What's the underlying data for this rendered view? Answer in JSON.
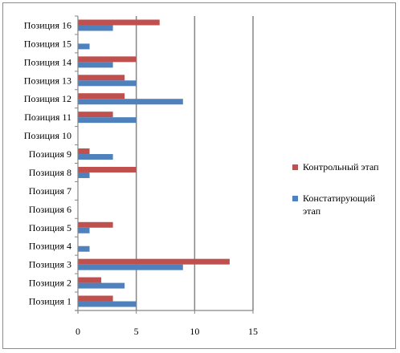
{
  "chart_data": {
    "type": "bar",
    "orientation": "horizontal",
    "categories": [
      "Позиция 1",
      "Позиция 2",
      "Позиция 3",
      "Позиция 4",
      "Позиция 5",
      "Позиция 6",
      "Позиция 7",
      "Позиция 8",
      "Позиция 9",
      "Позиция 10",
      "Позиция 11",
      "Позиция 12",
      "Позиция 13",
      "Позиция 14",
      "Позиция 15",
      "Позиция 16"
    ],
    "series": [
      {
        "name": "Констатирующий этап",
        "color": "#4f81bd",
        "values": [
          5,
          4,
          9,
          1,
          1,
          0,
          0,
          1,
          3,
          0,
          5,
          9,
          5,
          3,
          1,
          3
        ]
      },
      {
        "name": "Контрольный этап",
        "color": "#c0504d",
        "values": [
          3,
          2,
          13,
          0,
          3,
          0,
          0,
          5,
          1,
          0,
          3,
          4,
          4,
          5,
          0,
          7
        ]
      }
    ],
    "xlim": [
      0,
      15
    ],
    "xticks": [
      0,
      5,
      10,
      15
    ],
    "grid": "vertical major gridlines",
    "legend_position": "right",
    "legend_order": [
      "Контрольный этап",
      "Констатирующий этап"
    ],
    "title": "",
    "xlabel": "",
    "ylabel": ""
  }
}
